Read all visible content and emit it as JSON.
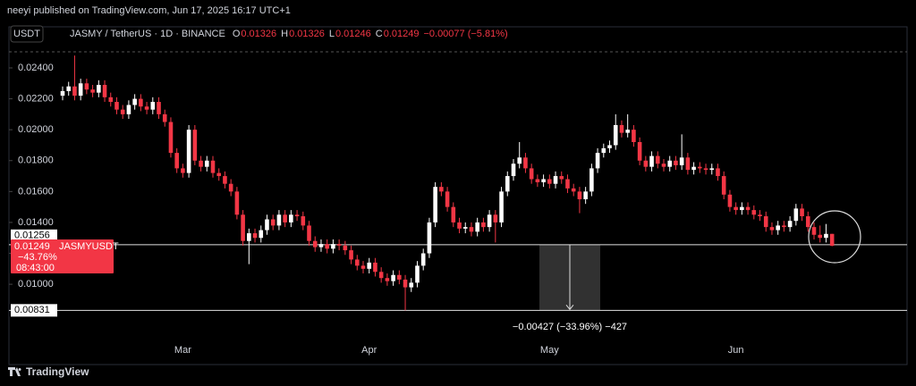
{
  "chart_data": {
    "type": "candlestick",
    "header": "neeyi published on TradingView.com, Jun 17, 2025 16:17 UTC+1",
    "currency": "USDT",
    "symbol": "JASMY / TetherUS · 1D · BINANCE",
    "ohlc_keys": [
      "O",
      "H",
      "L",
      "C"
    ],
    "change": "−0.00077 (−5.81%)",
    "change_pct": "−43.76%",
    "countdown": "08:43:00",
    "measure_label": "−0.00427 (−33.96%) −427",
    "footer": "TradingView",
    "hlines": [
      0.01256,
      0.00831
    ],
    "ylim": [
      0.007,
      0.02504
    ],
    "yticks": [
      {
        "value": 0.01,
        "label": "0.01000"
      },
      {
        "value": 0.012,
        "label": "0.01200"
      },
      {
        "value": 0.014,
        "label": "0.01400"
      },
      {
        "value": 0.016,
        "label": "0.01600"
      },
      {
        "value": 0.018,
        "label": "0.01800"
      },
      {
        "value": 0.02,
        "label": "0.02000"
      },
      {
        "value": 0.022,
        "label": "0.02200"
      },
      {
        "value": 0.024,
        "label": "0.02400"
      }
    ],
    "categories": [
      null,
      null,
      null,
      null,
      null,
      null,
      null,
      null,
      null,
      null,
      null,
      null,
      null,
      null,
      null,
      null,
      null,
      null,
      null,
      null,
      "Mar",
      null,
      null,
      null,
      null,
      null,
      null,
      null,
      null,
      null,
      null,
      null,
      null,
      null,
      null,
      null,
      null,
      null,
      null,
      null,
      null,
      null,
      null,
      null,
      null,
      null,
      null,
      null,
      null,
      null,
      null,
      "Apr",
      null,
      null,
      null,
      null,
      null,
      null,
      null,
      null,
      null,
      null,
      null,
      null,
      null,
      null,
      null,
      null,
      null,
      null,
      null,
      null,
      null,
      null,
      null,
      null,
      null,
      null,
      null,
      null,
      null,
      "May",
      null,
      null,
      null,
      null,
      null,
      null,
      null,
      null,
      null,
      null,
      null,
      null,
      null,
      null,
      null,
      null,
      null,
      null,
      null,
      null,
      null,
      null,
      null,
      null,
      null,
      null,
      null,
      null,
      null,
      null,
      "Jun",
      null,
      null,
      null,
      null,
      null,
      null,
      null,
      null,
      null,
      null,
      null,
      null,
      null,
      null,
      null,
      null
    ],
    "series": [
      {
        "name": "JASMYUSDT",
        "up_color": "#ffffff",
        "down_color": "#f23645",
        "open": [
          0.0222,
          0.0225,
          0.0228,
          0.0222,
          0.023,
          0.0226,
          0.0224,
          0.0229,
          0.0221,
          0.0218,
          0.0213,
          0.021,
          0.0216,
          0.022,
          0.0215,
          0.0213,
          0.0218,
          0.021,
          0.0205,
          0.0185,
          0.0175,
          0.0172,
          0.02,
          0.018,
          0.0176,
          0.018,
          0.0172,
          0.017,
          0.0165,
          0.016,
          0.0145,
          0.0128,
          0.0133,
          0.013,
          0.0135,
          0.0142,
          0.0138,
          0.0145,
          0.014,
          0.0145,
          0.0144,
          0.0138,
          0.0128,
          0.0124,
          0.0126,
          0.0123,
          0.0126,
          0.0125,
          0.0122,
          0.0116,
          0.0112,
          0.011,
          0.0114,
          0.0108,
          0.0104,
          0.0102,
          0.0106,
          0.0103,
          0.0098,
          0.0101,
          0.0112,
          0.012,
          0.014,
          0.0163,
          0.016,
          0.015,
          0.014,
          0.0136,
          0.0137,
          0.0134,
          0.014,
          0.0137,
          0.0145,
          0.014,
          0.016,
          0.017,
          0.0178,
          0.0182,
          0.0175,
          0.0168,
          0.0166,
          0.0168,
          0.0165,
          0.017,
          0.0168,
          0.0162,
          0.016,
          0.0155,
          0.016,
          0.0175,
          0.0185,
          0.0188,
          0.019,
          0.0203,
          0.0198,
          0.02,
          0.0192,
          0.018,
          0.0176,
          0.0183,
          0.0178,
          0.0176,
          0.018,
          0.0177,
          0.0182,
          0.0174,
          0.0176,
          0.0175,
          0.0174,
          0.0175,
          0.017,
          0.0158,
          0.015,
          0.0148,
          0.015,
          0.0148,
          0.0145,
          0.0144,
          0.0137,
          0.0135,
          0.0138,
          0.0137,
          0.0141,
          0.0149,
          0.0144,
          0.0137,
          0.0132,
          0.013,
          0.01326
        ],
        "high": [
          0.0228,
          0.0231,
          0.0248,
          0.0233,
          0.0233,
          0.0229,
          0.0232,
          0.0232,
          0.0224,
          0.0221,
          0.0216,
          0.0219,
          0.0223,
          0.0223,
          0.0218,
          0.0221,
          0.0221,
          0.0213,
          0.0208,
          0.0188,
          0.0178,
          0.0203,
          0.0203,
          0.0183,
          0.0183,
          0.0183,
          0.0175,
          0.0173,
          0.0168,
          0.0163,
          0.0148,
          0.0136,
          0.0136,
          0.0138,
          0.0145,
          0.0145,
          0.0148,
          0.0148,
          0.0148,
          0.0148,
          0.0147,
          0.0141,
          0.0131,
          0.0129,
          0.0129,
          0.0129,
          0.0129,
          0.0128,
          0.0125,
          0.0119,
          0.0115,
          0.0117,
          0.0117,
          0.0111,
          0.0107,
          0.0109,
          0.0109,
          0.0106,
          0.0104,
          0.0115,
          0.0123,
          0.0143,
          0.0166,
          0.0166,
          0.0163,
          0.0153,
          0.0143,
          0.014,
          0.014,
          0.0143,
          0.0143,
          0.0148,
          0.0148,
          0.0163,
          0.0173,
          0.0181,
          0.0192,
          0.0185,
          0.0178,
          0.0171,
          0.0171,
          0.0171,
          0.0173,
          0.0173,
          0.0171,
          0.0165,
          0.0163,
          0.0163,
          0.0178,
          0.0188,
          0.0191,
          0.0193,
          0.021,
          0.0206,
          0.021,
          0.0203,
          0.0195,
          0.0183,
          0.0186,
          0.0186,
          0.0181,
          0.0183,
          0.0183,
          0.0197,
          0.0185,
          0.0179,
          0.0179,
          0.0178,
          0.0178,
          0.0178,
          0.0173,
          0.0161,
          0.0153,
          0.0153,
          0.0153,
          0.0151,
          0.0148,
          0.0147,
          0.014,
          0.0141,
          0.0141,
          0.0144,
          0.0152,
          0.0152,
          0.0147,
          0.014,
          0.0138,
          0.0139,
          0.01326
        ],
        "low": [
          0.0219,
          0.0222,
          0.0219,
          0.0219,
          0.0223,
          0.0221,
          0.0221,
          0.0218,
          0.0215,
          0.021,
          0.0207,
          0.0207,
          0.0213,
          0.0212,
          0.021,
          0.021,
          0.0207,
          0.0202,
          0.0182,
          0.0172,
          0.0169,
          0.0169,
          0.0177,
          0.0173,
          0.0173,
          0.0169,
          0.0167,
          0.0162,
          0.0157,
          0.0142,
          0.0125,
          0.0113,
          0.0127,
          0.0127,
          0.0132,
          0.0135,
          0.0135,
          0.0137,
          0.0137,
          0.0141,
          0.0135,
          0.0125,
          0.0121,
          0.0121,
          0.012,
          0.012,
          0.0122,
          0.0119,
          0.0113,
          0.0109,
          0.0107,
          0.0107,
          0.0105,
          0.0101,
          0.0099,
          0.0099,
          0.01,
          0.00831,
          0.0095,
          0.0098,
          0.0109,
          0.0117,
          0.0137,
          0.0157,
          0.0147,
          0.0137,
          0.0133,
          0.0133,
          0.0131,
          0.0131,
          0.0134,
          0.0134,
          0.0127,
          0.0137,
          0.0157,
          0.0167,
          0.0175,
          0.0172,
          0.0165,
          0.0163,
          0.0163,
          0.0162,
          0.0162,
          0.0165,
          0.0159,
          0.0157,
          0.0146,
          0.0152,
          0.0157,
          0.0172,
          0.0182,
          0.0185,
          0.0187,
          0.0195,
          0.0195,
          0.0189,
          0.0177,
          0.0173,
          0.0173,
          0.0175,
          0.0173,
          0.0173,
          0.0174,
          0.0174,
          0.0171,
          0.0171,
          0.0172,
          0.0171,
          0.0171,
          0.0167,
          0.0155,
          0.0147,
          0.0145,
          0.0145,
          0.0145,
          0.0142,
          0.0141,
          0.0134,
          0.0132,
          0.0132,
          0.0134,
          0.0134,
          0.0138,
          0.0141,
          0.0134,
          0.0129,
          0.0127,
          0.0127,
          0.01246
        ],
        "close": [
          0.0225,
          0.0228,
          0.0222,
          0.023,
          0.0226,
          0.0224,
          0.0229,
          0.0221,
          0.0218,
          0.0213,
          0.021,
          0.0216,
          0.022,
          0.0215,
          0.0213,
          0.0218,
          0.021,
          0.0205,
          0.0185,
          0.0175,
          0.0172,
          0.02,
          0.018,
          0.0176,
          0.018,
          0.0172,
          0.017,
          0.0165,
          0.016,
          0.0145,
          0.0128,
          0.0133,
          0.013,
          0.0135,
          0.0142,
          0.0138,
          0.0145,
          0.014,
          0.0145,
          0.0144,
          0.0138,
          0.0128,
          0.0124,
          0.0126,
          0.0123,
          0.0126,
          0.0125,
          0.0122,
          0.0116,
          0.0112,
          0.011,
          0.0114,
          0.0108,
          0.0104,
          0.0102,
          0.0106,
          0.0103,
          0.0098,
          0.0101,
          0.0112,
          0.012,
          0.014,
          0.0163,
          0.016,
          0.015,
          0.014,
          0.0136,
          0.0137,
          0.0134,
          0.014,
          0.0137,
          0.0145,
          0.014,
          0.016,
          0.017,
          0.0178,
          0.0182,
          0.0175,
          0.0168,
          0.0166,
          0.0168,
          0.0165,
          0.017,
          0.0168,
          0.0162,
          0.016,
          0.0155,
          0.016,
          0.0175,
          0.0185,
          0.0188,
          0.019,
          0.0203,
          0.0198,
          0.02,
          0.0192,
          0.018,
          0.0176,
          0.0183,
          0.0178,
          0.0176,
          0.018,
          0.0177,
          0.0182,
          0.0174,
          0.0176,
          0.0175,
          0.0174,
          0.0175,
          0.017,
          0.0158,
          0.015,
          0.0148,
          0.015,
          0.0148,
          0.0145,
          0.0144,
          0.0137,
          0.0135,
          0.0138,
          0.0137,
          0.0141,
          0.0149,
          0.0144,
          0.0137,
          0.0132,
          0.013,
          0.01326,
          0.01249
        ]
      }
    ]
  }
}
